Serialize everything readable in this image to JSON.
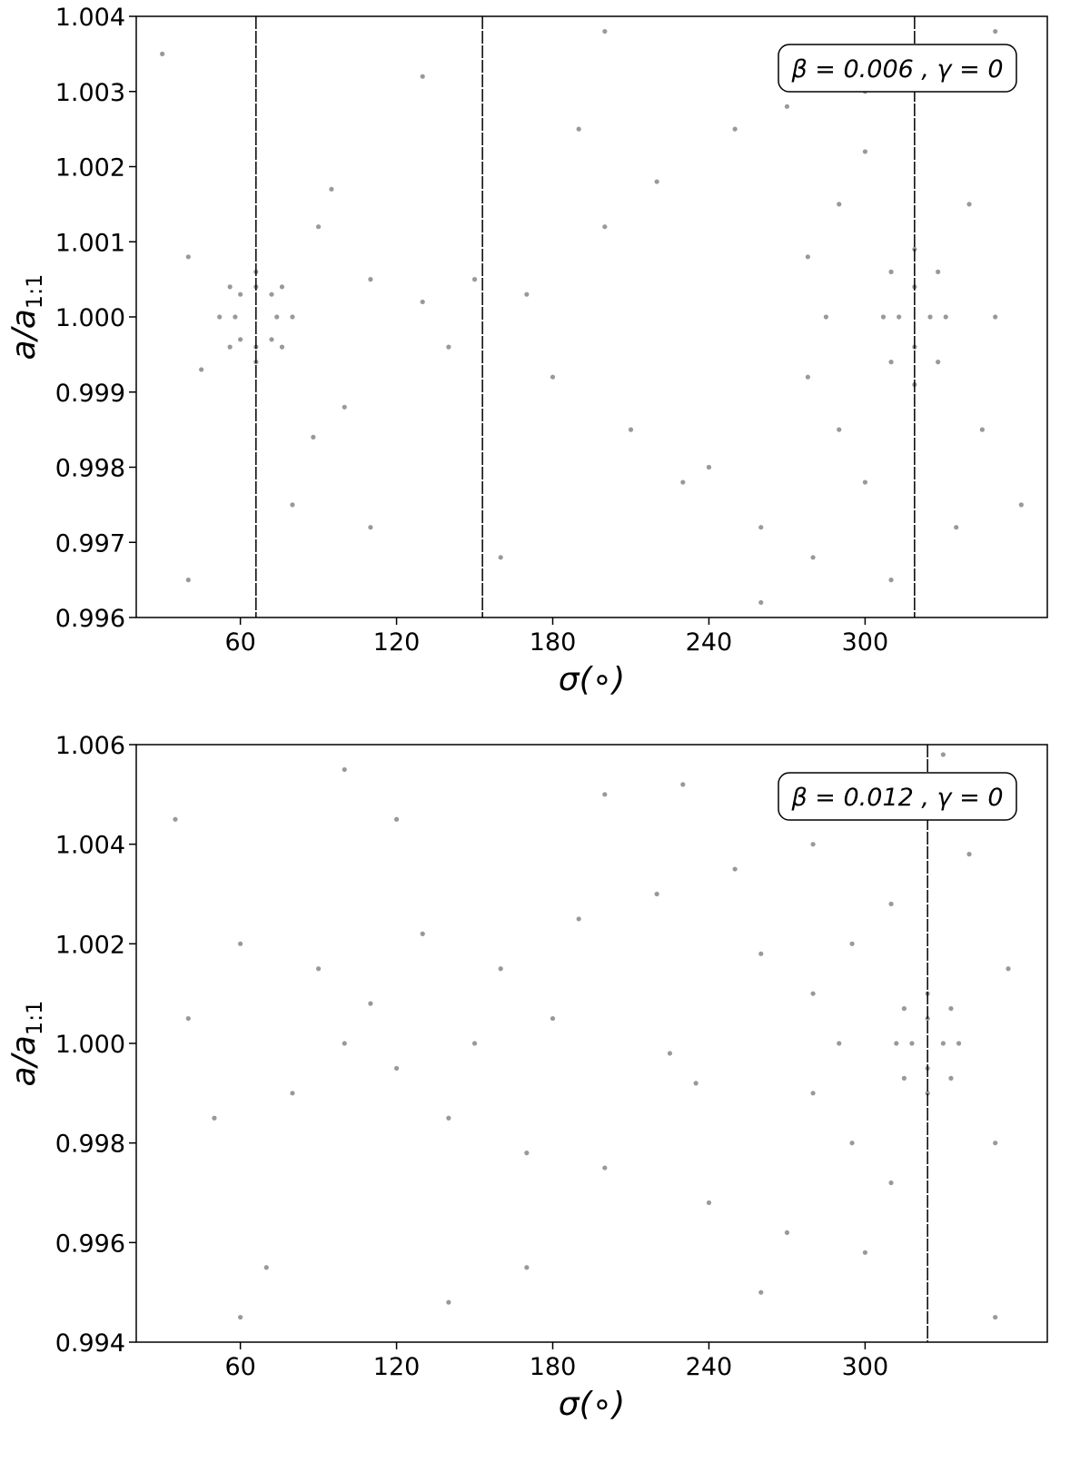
{
  "chart_data": [
    {
      "type": "scatter",
      "xlabel": "σ(∘)",
      "ylabel": "a/a",
      "ylabel_subscript": "1:1",
      "annotation": "β = 0.006 , γ = 0",
      "color": "#999999",
      "xlim": [
        20,
        370
      ],
      "xticks": [
        60,
        120,
        180,
        240,
        300
      ],
      "ylim": [
        0.996,
        1.004
      ],
      "yticks": [
        0.996,
        0.997,
        0.998,
        0.999,
        {
          "value": 1.0,
          "label": "1.000"
        },
        1.001,
        1.002,
        1.003,
        1.004
      ],
      "vlines": [
        66,
        153,
        319
      ],
      "x": [
        58,
        74,
        66,
        66,
        60,
        72,
        60,
        72,
        52,
        80,
        66,
        66,
        56,
        76,
        56,
        76,
        313,
        325,
        319,
        319,
        307,
        331,
        319,
        319,
        310,
        328,
        310,
        328,
        290,
        285,
        290,
        300,
        300,
        278,
        278,
        40,
        45,
        90,
        100,
        110,
        130,
        140,
        150,
        170,
        180,
        200,
        210,
        220,
        230,
        250,
        260,
        270,
        280,
        300,
        310,
        340,
        345,
        350,
        335,
        88,
        95,
        30,
        80,
        130,
        160,
        200,
        260,
        350,
        40,
        110,
        190,
        240,
        360
      ],
      "values": [
        1.0,
        1.0,
        1.0004,
        0.9996,
        1.0003,
        1.0003,
        0.9997,
        0.9997,
        1.0,
        1.0,
        1.0006,
        0.9994,
        1.0004,
        1.0004,
        0.9996,
        0.9996,
        1.0,
        1.0,
        1.0004,
        0.9996,
        1.0,
        1.0,
        1.0009,
        0.9991,
        1.0006,
        1.0006,
        0.9994,
        0.9994,
        1.0015,
        1.0,
        0.9985,
        1.0022,
        0.9978,
        1.0008,
        0.9992,
        1.0008,
        0.9993,
        1.0012,
        0.9988,
        1.0005,
        1.0002,
        0.9996,
        1.0005,
        1.0003,
        0.9992,
        1.0012,
        0.9985,
        1.0018,
        0.9978,
        1.0025,
        0.9972,
        1.0028,
        0.9968,
        1.003,
        0.9965,
        1.0015,
        0.9985,
        1.0,
        0.9972,
        0.9984,
        1.0017,
        1.0035,
        0.9975,
        1.0032,
        0.9968,
        1.0038,
        0.9962,
        1.0038,
        0.9965,
        0.9972,
        1.0025,
        0.998,
        0.9975
      ]
    },
    {
      "type": "scatter",
      "xlabel": "σ(∘)",
      "ylabel": "a/a",
      "ylabel_subscript": "1:1",
      "annotation": "β = 0.012 , γ = 0",
      "color": "#999999",
      "xlim": [
        20,
        370
      ],
      "xticks": [
        60,
        120,
        180,
        240,
        300
      ],
      "ylim": [
        0.994,
        1.006
      ],
      "yticks": [
        0.994,
        0.996,
        0.998,
        {
          "value": 1.0,
          "label": "1.000"
        },
        1.002,
        1.004,
        1.006
      ],
      "vlines": [
        324
      ],
      "x": [
        318,
        330,
        324,
        324,
        312,
        336,
        324,
        324,
        315,
        333,
        315,
        333,
        295,
        290,
        295,
        310,
        310,
        280,
        280,
        225,
        235,
        40,
        50,
        60,
        80,
        90,
        100,
        120,
        130,
        140,
        160,
        170,
        190,
        200,
        220,
        240,
        250,
        270,
        280,
        300,
        340,
        350,
        355,
        110,
        150,
        180,
        260,
        35,
        70,
        100,
        140,
        200,
        260,
        330,
        60,
        170,
        350,
        120,
        230
      ],
      "values": [
        1.0,
        1.0,
        1.0005,
        0.9995,
        1.0,
        1.0,
        1.001,
        0.999,
        1.0007,
        1.0007,
        0.9993,
        0.9993,
        1.002,
        1.0,
        0.998,
        1.0028,
        0.9972,
        1.001,
        0.999,
        0.9998,
        0.9992,
        1.0005,
        0.9985,
        1.002,
        0.999,
        1.0015,
        1.0,
        0.9995,
        1.0022,
        0.9985,
        1.0015,
        0.9978,
        1.0025,
        0.9975,
        1.003,
        0.9968,
        1.0035,
        0.9962,
        1.004,
        0.9958,
        1.0038,
        0.998,
        1.0015,
        1.0008,
        1.0,
        1.0005,
        1.0018,
        1.0045,
        0.9955,
        1.0055,
        0.9948,
        1.005,
        0.995,
        1.0058,
        0.9945,
        0.9955,
        0.9945,
        1.0045,
        1.0052
      ]
    }
  ]
}
